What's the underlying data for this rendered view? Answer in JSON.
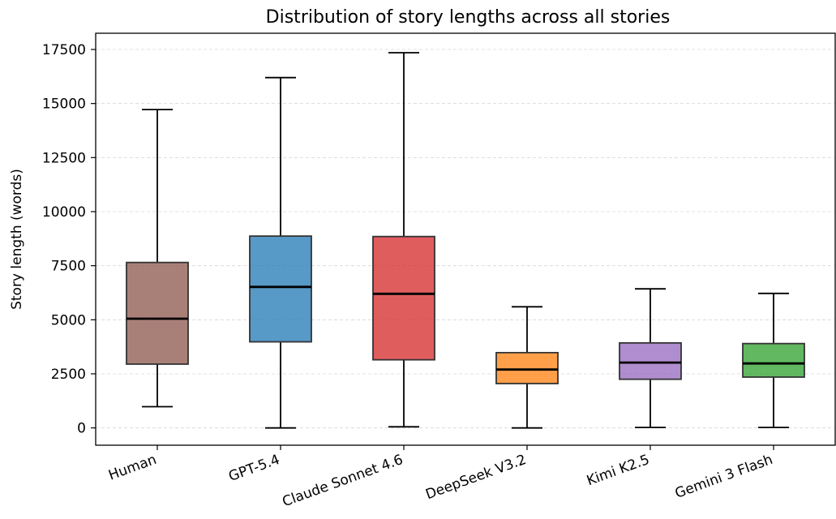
{
  "chart_data": {
    "type": "box",
    "title": "Distribution of story lengths across all stories",
    "xlabel": "",
    "ylabel": "Story length (words)",
    "ylim": [
      -800,
      18250
    ],
    "yticks": [
      0,
      2500,
      5000,
      7500,
      10000,
      12500,
      15000,
      17500
    ],
    "grid": "y-dashed",
    "categories": [
      "Human",
      "GPT-5.4",
      "Claude Sonnet 4.6",
      "DeepSeek V3.2",
      "Kimi K2.5",
      "Gemini 3 Flash"
    ],
    "colors": [
      "#8c564b",
      "#1f77b4",
      "#d62728",
      "#ff7f0e",
      "#9467bd",
      "#2ca02c"
    ],
    "boxes": [
      {
        "category": "Human",
        "whisker_low": 980,
        "q1": 2950,
        "median": 5050,
        "q3": 7650,
        "whisker_high": 14720
      },
      {
        "category": "GPT-5.4",
        "whisker_low": 0,
        "q1": 3980,
        "median": 6520,
        "q3": 8870,
        "whisker_high": 16200
      },
      {
        "category": "Claude Sonnet 4.6",
        "whisker_low": 50,
        "q1": 3150,
        "median": 6200,
        "q3": 8850,
        "whisker_high": 17350
      },
      {
        "category": "DeepSeek V3.2",
        "whisker_low": 0,
        "q1": 2050,
        "median": 2700,
        "q3": 3480,
        "whisker_high": 5600
      },
      {
        "category": "Kimi K2.5",
        "whisker_low": 20,
        "q1": 2250,
        "median": 3020,
        "q3": 3930,
        "whisker_high": 6430
      },
      {
        "category": "Gemini 3 Flash",
        "whisker_low": 20,
        "q1": 2350,
        "median": 2980,
        "q3": 3900,
        "whisker_high": 6220
      }
    ]
  }
}
